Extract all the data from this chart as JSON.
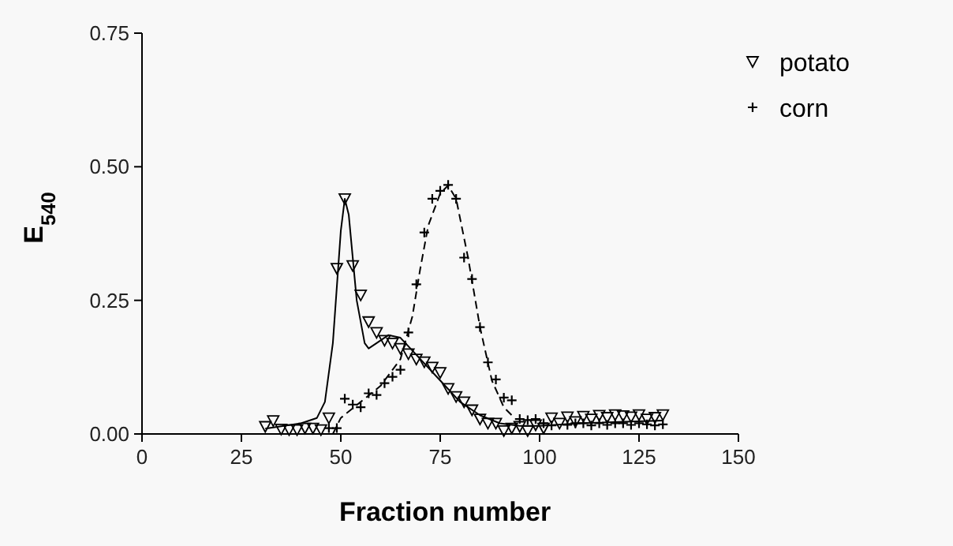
{
  "chart_data": {
    "type": "scatter",
    "xlabel": "Fraction number",
    "ylabel": "E$_{540}$",
    "xlim": [
      0,
      150
    ],
    "xticks": [
      0,
      25,
      50,
      75,
      100,
      125,
      150
    ],
    "ylim": [
      0,
      0.75
    ],
    "yticks": [
      {
        "value": 0,
        "label": "0.00"
      },
      {
        "value": 0.25,
        "label": "0.25"
      },
      {
        "value": 0.5,
        "label": "0.50"
      },
      {
        "value": 0.75,
        "label": "0.75"
      }
    ],
    "grid": false,
    "legend": "top right",
    "series": [
      {
        "name": "potato",
        "marker": "triangle",
        "color": "#000000",
        "x": [
          31,
          33,
          35,
          37,
          39,
          41,
          43,
          45,
          47,
          49,
          51,
          53,
          55,
          57,
          59,
          61,
          63,
          65,
          67,
          69,
          71,
          73,
          75,
          77,
          79,
          81,
          83,
          85,
          87,
          89,
          91,
          93,
          95,
          97,
          99,
          101,
          103,
          105,
          107,
          109,
          111,
          113,
          115,
          117,
          119,
          121,
          123,
          125,
          127,
          129,
          131
        ],
        "values": [
          0.014,
          0.025,
          0.009,
          0.008,
          0.008,
          0.011,
          0.011,
          0.008,
          0.03,
          0.31,
          0.44,
          0.315,
          0.26,
          0.21,
          0.19,
          0.175,
          0.17,
          0.16,
          0.15,
          0.14,
          0.135,
          0.125,
          0.115,
          0.085,
          0.07,
          0.06,
          0.045,
          0.028,
          0.02,
          0.02,
          0.006,
          0.011,
          0.014,
          0.006,
          0.017,
          0.011,
          0.03,
          0.02,
          0.032,
          0.023,
          0.033,
          0.028,
          0.035,
          0.031,
          0.036,
          0.034,
          0.032,
          0.036,
          0.028,
          0.031,
          0.036
        ]
      },
      {
        "name": "corn",
        "marker": "cross",
        "color": "#000000",
        "x": [
          47,
          49,
          51,
          53,
          55,
          57,
          59,
          61,
          63,
          65,
          67,
          69,
          71,
          73,
          75,
          77,
          79,
          81,
          83,
          85,
          87,
          89,
          91,
          93,
          95,
          97,
          99,
          101,
          103,
          107,
          109,
          111,
          113,
          115,
          117,
          119,
          121,
          123,
          125,
          127,
          129,
          131
        ],
        "values": [
          0.011,
          0.011,
          0.066,
          0.055,
          0.05,
          0.076,
          0.073,
          0.095,
          0.107,
          0.12,
          0.19,
          0.28,
          0.377,
          0.44,
          0.455,
          0.466,
          0.44,
          0.33,
          0.29,
          0.2,
          0.134,
          0.102,
          0.068,
          0.063,
          0.028,
          0.026,
          0.028,
          0.02,
          0.016,
          0.017,
          0.02,
          0.02,
          0.016,
          0.02,
          0.017,
          0.02,
          0.02,
          0.017,
          0.02,
          0.018,
          0.016,
          0.018
        ]
      },
      {
        "type": "line",
        "marker": "none",
        "line_style": "solid",
        "color": "#000000",
        "x": [
          31,
          40,
          44,
          46,
          48,
          50,
          51,
          52,
          54,
          56,
          57,
          59,
          62,
          65,
          70,
          75,
          80,
          85,
          90,
          95,
          100,
          110,
          131
        ],
        "values": [
          0.01,
          0.02,
          0.03,
          0.06,
          0.17,
          0.38,
          0.44,
          0.41,
          0.25,
          0.17,
          0.16,
          0.17,
          0.185,
          0.18,
          0.14,
          0.1,
          0.06,
          0.035,
          0.02,
          0.015,
          0.015,
          0.02,
          0.025
        ]
      },
      {
        "type": "line",
        "marker": "none",
        "line_style": "dashed",
        "color": "#000000",
        "x": [
          48,
          50,
          55,
          60,
          65,
          68,
          70,
          72,
          75,
          77,
          79,
          82,
          85,
          88,
          91,
          93
        ],
        "values": [
          0.0,
          0.03,
          0.06,
          0.09,
          0.14,
          0.22,
          0.31,
          0.39,
          0.45,
          0.465,
          0.44,
          0.33,
          0.2,
          0.1,
          0.05,
          0.035
        ]
      }
    ]
  }
}
